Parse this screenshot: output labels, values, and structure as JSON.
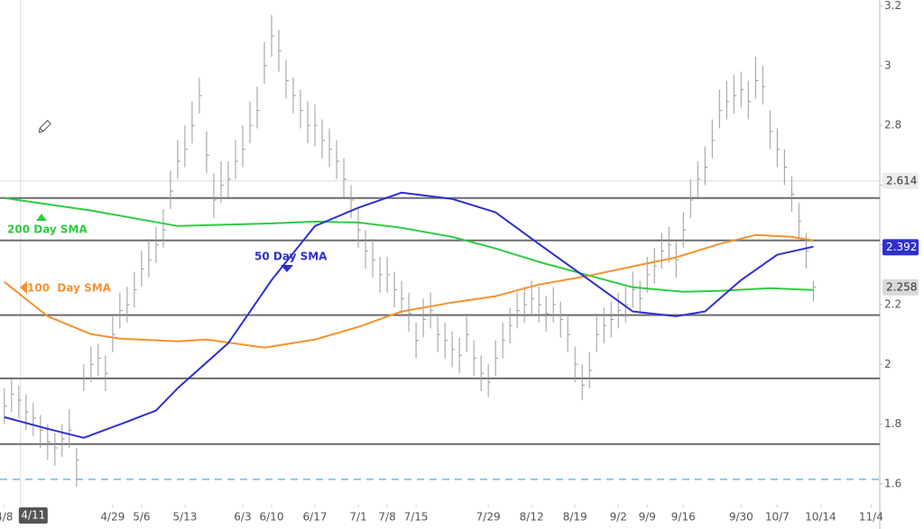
{
  "chart_data": {
    "type": "ohlc",
    "xlim": [
      -0.6,
      121.2
    ],
    "ylim": [
      1.53,
      3.22
    ],
    "yticks": [
      1.6,
      1.8,
      2,
      2.2,
      2.4,
      2.6,
      2.8,
      3,
      3.2
    ],
    "xticks": [
      {
        "value": 0,
        "label": "4/8"
      },
      {
        "value": 4,
        "label": "4/11"
      },
      {
        "value": 15,
        "label": "4/29"
      },
      {
        "value": 19,
        "label": "5/6"
      },
      {
        "value": 25,
        "label": "5/13"
      },
      {
        "value": 33,
        "label": "6/3"
      },
      {
        "value": 37,
        "label": "6/10"
      },
      {
        "value": 43,
        "label": "6/17"
      },
      {
        "value": 49,
        "label": "7/1"
      },
      {
        "value": 53,
        "label": "7/8"
      },
      {
        "value": 57,
        "label": "7/15"
      },
      {
        "value": 67,
        "label": "7/29"
      },
      {
        "value": 73,
        "label": "8/12"
      },
      {
        "value": 79,
        "label": "8/19"
      },
      {
        "value": 85,
        "label": "9/2"
      },
      {
        "value": 89,
        "label": "9/9"
      },
      {
        "value": 94,
        "label": "9/16"
      },
      {
        "value": 102,
        "label": "9/30"
      },
      {
        "value": 107,
        "label": "10/7"
      },
      {
        "value": 113,
        "label": "10/14"
      },
      {
        "value": 120,
        "label": "11/4"
      }
    ],
    "crosshair_x": 4,
    "bar_color": "#9a9a9a",
    "high": [
      1.92,
      1.95,
      1.93,
      1.9,
      1.87,
      1.83,
      1.8,
      1.77,
      1.8,
      1.85,
      1.72,
      2.0,
      2.06,
      2.07,
      2.03,
      2.16,
      2.24,
      2.26,
      2.31,
      2.38,
      2.42,
      2.46,
      2.52,
      2.65,
      2.75,
      2.8,
      2.88,
      2.96,
      2.78,
      2.64,
      2.68,
      2.68,
      2.75,
      2.8,
      2.88,
      2.93,
      3.08,
      3.17,
      3.12,
      3.02,
      2.96,
      2.92,
      2.88,
      2.87,
      2.82,
      2.79,
      2.75,
      2.69,
      2.6,
      2.52,
      2.45,
      2.42,
      2.36,
      2.36,
      2.31,
      2.28,
      2.24,
      2.14,
      2.22,
      2.24,
      2.16,
      2.14,
      2.11,
      2.09,
      2.16,
      2.08,
      2.03,
      2.0,
      2.08,
      2.14,
      2.19,
      2.24,
      2.26,
      2.28,
      2.26,
      2.23,
      2.26,
      2.21,
      2.16,
      2.06,
      2.0,
      2.04,
      2.16,
      2.19,
      2.21,
      2.24,
      2.26,
      2.31,
      2.28,
      2.36,
      2.39,
      2.44,
      2.46,
      2.41,
      2.51,
      2.62,
      2.68,
      2.73,
      2.82,
      2.92,
      2.95,
      2.97,
      2.98,
      2.95,
      3.03,
      3.0,
      2.85,
      2.79,
      2.72,
      2.63,
      2.54,
      2.44,
      2.28
    ],
    "low": [
      1.8,
      1.84,
      1.82,
      1.78,
      1.76,
      1.72,
      1.68,
      1.66,
      1.69,
      1.72,
      1.59,
      1.91,
      1.94,
      1.96,
      1.91,
      2.04,
      2.12,
      2.14,
      2.19,
      2.26,
      2.29,
      2.34,
      2.39,
      2.52,
      2.62,
      2.66,
      2.74,
      2.84,
      2.64,
      2.49,
      2.54,
      2.56,
      2.62,
      2.66,
      2.74,
      2.79,
      2.94,
      3.03,
      2.98,
      2.89,
      2.84,
      2.79,
      2.74,
      2.73,
      2.69,
      2.66,
      2.62,
      2.56,
      2.49,
      2.39,
      2.32,
      2.29,
      2.24,
      2.24,
      2.19,
      2.16,
      2.11,
      2.02,
      2.09,
      2.12,
      2.04,
      2.02,
      1.99,
      1.97,
      2.04,
      1.96,
      1.91,
      1.89,
      1.96,
      2.02,
      2.07,
      2.12,
      2.14,
      2.16,
      2.14,
      2.11,
      2.14,
      2.09,
      2.04,
      1.94,
      1.88,
      1.92,
      2.04,
      2.07,
      2.09,
      2.12,
      2.14,
      2.19,
      2.16,
      2.24,
      2.27,
      2.32,
      2.34,
      2.29,
      2.39,
      2.49,
      2.56,
      2.6,
      2.69,
      2.79,
      2.82,
      2.84,
      2.86,
      2.82,
      2.89,
      2.87,
      2.72,
      2.66,
      2.6,
      2.51,
      2.42,
      2.32,
      2.21
    ],
    "close": [
      1.86,
      1.9,
      1.88,
      1.84,
      1.82,
      1.78,
      1.74,
      1.72,
      1.75,
      1.78,
      1.68,
      1.95,
      2.0,
      2.02,
      1.97,
      2.1,
      2.18,
      2.2,
      2.25,
      2.32,
      2.35,
      2.4,
      2.45,
      2.58,
      2.68,
      2.72,
      2.8,
      2.9,
      2.7,
      2.55,
      2.6,
      2.62,
      2.68,
      2.72,
      2.8,
      2.85,
      3.0,
      3.1,
      3.05,
      2.95,
      2.9,
      2.85,
      2.8,
      2.8,
      2.75,
      2.72,
      2.68,
      2.62,
      2.55,
      2.45,
      2.38,
      2.35,
      2.3,
      2.3,
      2.25,
      2.22,
      2.17,
      2.08,
      2.15,
      2.18,
      2.1,
      2.08,
      2.05,
      2.03,
      2.1,
      2.02,
      1.97,
      1.94,
      2.02,
      2.08,
      2.13,
      2.18,
      2.2,
      2.22,
      2.2,
      2.17,
      2.2,
      2.15,
      2.1,
      2.0,
      1.93,
      1.98,
      2.1,
      2.13,
      2.15,
      2.18,
      2.2,
      2.25,
      2.22,
      2.3,
      2.33,
      2.38,
      2.4,
      2.35,
      2.45,
      2.55,
      2.62,
      2.66,
      2.75,
      2.85,
      2.88,
      2.9,
      2.92,
      2.88,
      2.95,
      2.93,
      2.78,
      2.72,
      2.66,
      2.57,
      2.48,
      2.38,
      2.258
    ],
    "series": [
      {
        "name": "200 Day SMA",
        "color": "#2ecc40",
        "x": [
          0,
          12,
          24,
          37,
          43,
          49,
          55,
          62,
          68,
          74,
          81,
          87,
          94,
          99,
          106,
          112
        ],
        "values": [
          2.557,
          2.515,
          2.463,
          2.472,
          2.478,
          2.475,
          2.457,
          2.427,
          2.388,
          2.343,
          2.297,
          2.258,
          2.243,
          2.246,
          2.255,
          2.249
        ]
      },
      {
        "name": "100  Day SMA",
        "color": "#f5922f",
        "x": [
          0,
          6,
          12,
          16,
          24,
          28,
          36,
          43,
          49,
          55,
          62,
          68,
          74,
          81,
          87,
          93,
          99,
          104,
          109,
          112
        ],
        "values": [
          2.276,
          2.161,
          2.101,
          2.086,
          2.077,
          2.083,
          2.056,
          2.083,
          2.125,
          2.177,
          2.207,
          2.228,
          2.267,
          2.297,
          2.328,
          2.358,
          2.403,
          2.433,
          2.427,
          2.415
        ]
      },
      {
        "name": "50 Day SMA",
        "color": "#2f2fd0",
        "x": [
          0,
          6,
          11,
          16,
          21,
          24,
          31,
          37,
          43,
          49,
          55,
          62,
          68,
          74,
          81,
          87,
          93,
          97,
          102,
          107,
          112
        ],
        "values": [
          1.823,
          1.784,
          1.754,
          1.799,
          1.845,
          1.92,
          2.071,
          2.282,
          2.463,
          2.524,
          2.575,
          2.554,
          2.509,
          2.403,
          2.282,
          2.177,
          2.161,
          2.177,
          2.282,
          2.367,
          2.394
        ]
      }
    ],
    "levels": [
      2.557,
      2.415,
      2.165,
      1.953,
      1.733
    ],
    "dashed_level": 1.615,
    "price_tags": [
      {
        "value": 2.614,
        "color": "#ececec",
        "text_color": "#333333"
      },
      {
        "value": 2.392,
        "color": "#2f2fd0",
        "text_color": "#ffffff"
      },
      {
        "value": 2.258,
        "color": "#d9d9d9",
        "text_color": "#333333"
      }
    ]
  }
}
